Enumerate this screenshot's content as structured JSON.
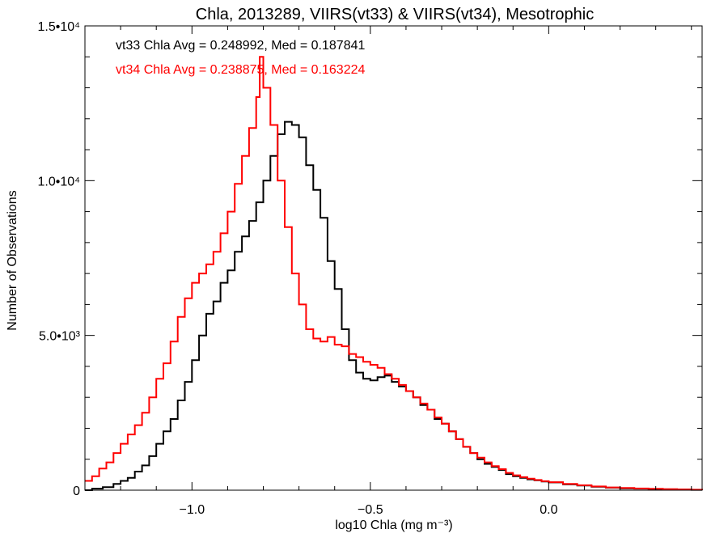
{
  "chart_data": {
    "type": "line",
    "title": "Chla, 2013289, VIIRS(vt33) & VIIRS(vt34), Mesotrophic",
    "xlabel": "log10 Chla (mg m⁻³)",
    "ylabel": "Number of Observations",
    "xlim": [
      -1.3,
      0.43
    ],
    "ylim": [
      0,
      15000
    ],
    "x_ticks": [
      {
        "value": -1.0,
        "label": "−1.0"
      },
      {
        "value": -0.5,
        "label": "−0.5"
      },
      {
        "value": 0.0,
        "label": "0.0"
      }
    ],
    "y_ticks": [
      {
        "value": 0,
        "label": "0"
      },
      {
        "value": 5000,
        "label": "5.0•10³"
      },
      {
        "value": 10000,
        "label": "1.0•10⁴"
      },
      {
        "value": 15000,
        "label": "1.5•10⁴"
      }
    ],
    "grid": false,
    "legend_position": "top-left",
    "series": [
      {
        "name": "vt33",
        "label": "vt33 Chla Avg = 0.248992, Med = 0.187841",
        "color": "#000000",
        "points": [
          [
            -1.3,
            0
          ],
          [
            -1.28,
            50
          ],
          [
            -1.25,
            100
          ],
          [
            -1.22,
            200
          ],
          [
            -1.2,
            300
          ],
          [
            -1.18,
            400
          ],
          [
            -1.16,
            600
          ],
          [
            -1.14,
            800
          ],
          [
            -1.12,
            1100
          ],
          [
            -1.1,
            1500
          ],
          [
            -1.08,
            1900
          ],
          [
            -1.06,
            2300
          ],
          [
            -1.04,
            2900
          ],
          [
            -1.02,
            3500
          ],
          [
            -1.0,
            4200
          ],
          [
            -0.98,
            5000
          ],
          [
            -0.96,
            5700
          ],
          [
            -0.94,
            6100
          ],
          [
            -0.92,
            6700
          ],
          [
            -0.9,
            7100
          ],
          [
            -0.88,
            7700
          ],
          [
            -0.86,
            8200
          ],
          [
            -0.84,
            8700
          ],
          [
            -0.82,
            9300
          ],
          [
            -0.8,
            10000
          ],
          [
            -0.78,
            10800
          ],
          [
            -0.76,
            11500
          ],
          [
            -0.74,
            11900
          ],
          [
            -0.72,
            11800
          ],
          [
            -0.7,
            11400
          ],
          [
            -0.68,
            10500
          ],
          [
            -0.66,
            9700
          ],
          [
            -0.64,
            8800
          ],
          [
            -0.62,
            7400
          ],
          [
            -0.6,
            6500
          ],
          [
            -0.58,
            5200
          ],
          [
            -0.56,
            4200
          ],
          [
            -0.54,
            3800
          ],
          [
            -0.52,
            3600
          ],
          [
            -0.5,
            3550
          ],
          [
            -0.48,
            3650
          ],
          [
            -0.46,
            3700
          ],
          [
            -0.44,
            3500
          ],
          [
            -0.42,
            3350
          ],
          [
            -0.4,
            3200
          ],
          [
            -0.38,
            3000
          ],
          [
            -0.36,
            2750
          ],
          [
            -0.34,
            2600
          ],
          [
            -0.32,
            2300
          ],
          [
            -0.3,
            2150
          ],
          [
            -0.28,
            1900
          ],
          [
            -0.26,
            1650
          ],
          [
            -0.24,
            1400
          ],
          [
            -0.22,
            1200
          ],
          [
            -0.2,
            1000
          ],
          [
            -0.18,
            850
          ],
          [
            -0.16,
            750
          ],
          [
            -0.14,
            650
          ],
          [
            -0.12,
            520
          ],
          [
            -0.1,
            450
          ],
          [
            -0.08,
            400
          ],
          [
            -0.06,
            350
          ],
          [
            -0.04,
            320
          ],
          [
            -0.02,
            280
          ],
          [
            0.0,
            250
          ],
          [
            0.04,
            190
          ],
          [
            0.08,
            150
          ],
          [
            0.12,
            110
          ],
          [
            0.16,
            80
          ],
          [
            0.2,
            60
          ],
          [
            0.24,
            50
          ],
          [
            0.28,
            40
          ],
          [
            0.32,
            30
          ],
          [
            0.36,
            20
          ],
          [
            0.4,
            10
          ],
          [
            0.43,
            5
          ]
        ]
      },
      {
        "name": "vt34",
        "label": "vt34 Chla Avg = 0.238875, Med = 0.163224",
        "color": "#ff0000",
        "points": [
          [
            -1.3,
            300
          ],
          [
            -1.28,
            450
          ],
          [
            -1.26,
            700
          ],
          [
            -1.24,
            900
          ],
          [
            -1.22,
            1200
          ],
          [
            -1.2,
            1500
          ],
          [
            -1.18,
            1800
          ],
          [
            -1.16,
            2100
          ],
          [
            -1.14,
            2500
          ],
          [
            -1.12,
            3000
          ],
          [
            -1.1,
            3600
          ],
          [
            -1.08,
            4100
          ],
          [
            -1.06,
            4800
          ],
          [
            -1.04,
            5600
          ],
          [
            -1.02,
            6200
          ],
          [
            -1.0,
            6700
          ],
          [
            -0.98,
            7000
          ],
          [
            -0.96,
            7300
          ],
          [
            -0.94,
            7700
          ],
          [
            -0.92,
            8300
          ],
          [
            -0.9,
            9000
          ],
          [
            -0.88,
            9900
          ],
          [
            -0.86,
            10800
          ],
          [
            -0.84,
            11700
          ],
          [
            -0.82,
            12700
          ],
          [
            -0.81,
            14000
          ],
          [
            -0.8,
            13000
          ],
          [
            -0.78,
            11800
          ],
          [
            -0.76,
            10000
          ],
          [
            -0.74,
            8500
          ],
          [
            -0.72,
            7000
          ],
          [
            -0.7,
            6000
          ],
          [
            -0.68,
            5200
          ],
          [
            -0.66,
            4900
          ],
          [
            -0.64,
            4800
          ],
          [
            -0.62,
            4950
          ],
          [
            -0.6,
            4700
          ],
          [
            -0.58,
            4650
          ],
          [
            -0.56,
            4400
          ],
          [
            -0.54,
            4300
          ],
          [
            -0.52,
            4150
          ],
          [
            -0.5,
            4050
          ],
          [
            -0.48,
            3950
          ],
          [
            -0.46,
            3750
          ],
          [
            -0.44,
            3600
          ],
          [
            -0.42,
            3400
          ],
          [
            -0.4,
            3200
          ],
          [
            -0.38,
            3000
          ],
          [
            -0.36,
            2800
          ],
          [
            -0.34,
            2600
          ],
          [
            -0.32,
            2350
          ],
          [
            -0.3,
            2150
          ],
          [
            -0.28,
            1900
          ],
          [
            -0.26,
            1650
          ],
          [
            -0.24,
            1400
          ],
          [
            -0.22,
            1200
          ],
          [
            -0.2,
            1050
          ],
          [
            -0.18,
            900
          ],
          [
            -0.16,
            780
          ],
          [
            -0.14,
            680
          ],
          [
            -0.12,
            560
          ],
          [
            -0.1,
            480
          ],
          [
            -0.08,
            420
          ],
          [
            -0.06,
            370
          ],
          [
            -0.04,
            330
          ],
          [
            -0.02,
            290
          ],
          [
            0.0,
            260
          ],
          [
            0.04,
            200
          ],
          [
            0.08,
            160
          ],
          [
            0.12,
            120
          ],
          [
            0.16,
            90
          ],
          [
            0.2,
            70
          ],
          [
            0.24,
            55
          ],
          [
            0.28,
            45
          ],
          [
            0.32,
            35
          ],
          [
            0.36,
            25
          ],
          [
            0.4,
            15
          ],
          [
            0.43,
            8
          ]
        ]
      }
    ]
  }
}
